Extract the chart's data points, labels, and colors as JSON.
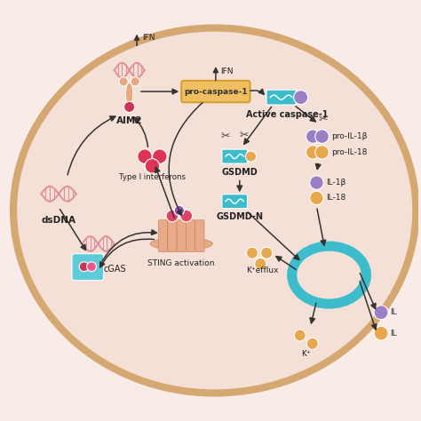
{
  "bg": "#f9ece8",
  "cell_fill": "#f5e0d8",
  "cell_edge": "#d4a870",
  "cyan": "#3dbdcc",
  "purple": "#9b7fc4",
  "orange": "#e8a84e",
  "pink_dna": "#e0909a",
  "pink_dark": "#cc4466",
  "aim2_pink": "#e08a7a",
  "sting_peach": "#e8aa88",
  "procasp_fill": "#f0c060",
  "procasp_edge": "#d4a030",
  "arrow_color": "#333333",
  "labels": {
    "dsDNA": "dsDNA",
    "cGAS": "cGAS",
    "AIM2": "AIM2",
    "STING": "STING activation",
    "TypeI": "Type I interferons",
    "IFN": "IFN",
    "procaspase": "pro-caspase-1",
    "active_caspase": "Active caspase-1",
    "GSDMD": "GSDMD",
    "GSDMDN": "GSDMD-N",
    "proIL1b": "pro-IL-1β",
    "proIL18": "pro-IL-18",
    "IL1b": "IL-1β",
    "IL18": "IL-18",
    "Kefflux": "K⁺efflux",
    "Kplus": "K⁺"
  }
}
